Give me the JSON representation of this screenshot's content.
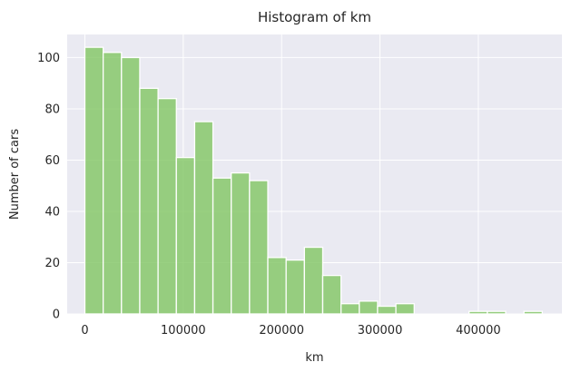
{
  "chart_data": {
    "type": "bar",
    "title": "Histogram of km",
    "xlabel": "km",
    "ylabel": "Number of cars",
    "bin_width": 18600,
    "bins": [
      {
        "x0": 0,
        "x1": 18600,
        "count": 104
      },
      {
        "x0": 18600,
        "x1": 37200,
        "count": 102
      },
      {
        "x0": 37200,
        "x1": 55800,
        "count": 100
      },
      {
        "x0": 55800,
        "x1": 74400,
        "count": 88
      },
      {
        "x0": 74400,
        "x1": 93000,
        "count": 84
      },
      {
        "x0": 93000,
        "x1": 111600,
        "count": 61
      },
      {
        "x0": 111600,
        "x1": 130200,
        "count": 75
      },
      {
        "x0": 130200,
        "x1": 148800,
        "count": 53
      },
      {
        "x0": 148800,
        "x1": 167400,
        "count": 55
      },
      {
        "x0": 167400,
        "x1": 186000,
        "count": 52
      },
      {
        "x0": 186000,
        "x1": 204600,
        "count": 22
      },
      {
        "x0": 204600,
        "x1": 223200,
        "count": 21
      },
      {
        "x0": 223200,
        "x1": 241800,
        "count": 26
      },
      {
        "x0": 241800,
        "x1": 260400,
        "count": 15
      },
      {
        "x0": 260400,
        "x1": 279000,
        "count": 4
      },
      {
        "x0": 279000,
        "x1": 297600,
        "count": 5
      },
      {
        "x0": 297600,
        "x1": 316200,
        "count": 3
      },
      {
        "x0": 316200,
        "x1": 334800,
        "count": 4
      },
      {
        "x0": 390600,
        "x1": 409200,
        "count": 1
      },
      {
        "x0": 409200,
        "x1": 427800,
        "count": 1
      },
      {
        "x0": 446400,
        "x1": 465000,
        "count": 1
      }
    ],
    "xlim": [
      -18000,
      485000
    ],
    "ylim": [
      0,
      109
    ],
    "xticks": [
      0,
      100000,
      200000,
      300000,
      400000
    ],
    "xtick_labels": [
      "0",
      "100000",
      "200000",
      "300000",
      "400000"
    ],
    "yticks": [
      0,
      20,
      40,
      60,
      80,
      100
    ],
    "ytick_labels": [
      "0",
      "20",
      "40",
      "60",
      "80",
      "100"
    ],
    "grid": true,
    "bar_color": "#7ec45f",
    "background_color": "#eaeaf2",
    "grid_color": "#ffffff"
  }
}
